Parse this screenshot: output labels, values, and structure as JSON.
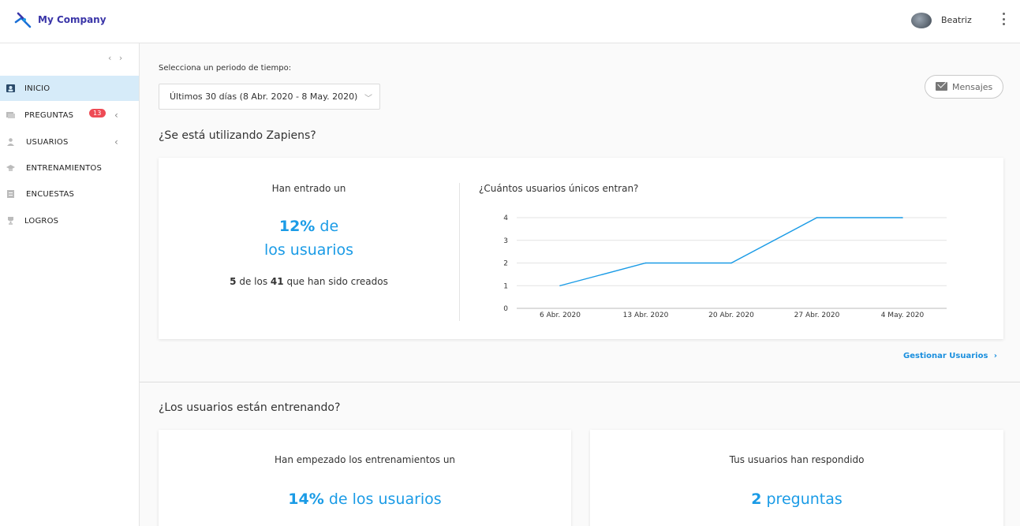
{
  "header": {
    "company": "My Company",
    "user": "Beatriz"
  },
  "sidebar": {
    "items": [
      {
        "label": "INICIO",
        "icon": "home-user-icon",
        "active": true
      },
      {
        "label": "PREGUNTAS",
        "icon": "chat-icon",
        "badge": "13"
      },
      {
        "label": "USUARIOS",
        "icon": "user-icon"
      },
      {
        "label": "ENTRENAMIENTOS",
        "icon": "graduation-cap-icon"
      },
      {
        "label": "ENCUESTAS",
        "icon": "clipboard-icon"
      },
      {
        "label": "LOGROS",
        "icon": "trophy-icon"
      }
    ]
  },
  "main": {
    "period_label": "Selecciona un periodo de tiempo:",
    "period_value": "Últimos 30 días (8 Abr. 2020 - 8 May. 2020)",
    "messages_label": "Mensajes",
    "section1": {
      "title": "¿Se está utilizando Zapiens?",
      "entered_label": "Han entrado un",
      "percent": "12%",
      "percent_suffix": "de",
      "percent_line2": "los usuarios",
      "count": "5",
      "count_mid": "de los",
      "total": "41",
      "count_suffix": "que han sido creados",
      "chart_title": "¿Cuántos usuarios únicos entran?",
      "manage_link": "Gestionar Usuarios"
    },
    "section2": {
      "title": "¿Los usuarios están entrenando?",
      "card1_label": "Han empezado los entrenamientos un",
      "card1_percent": "14%",
      "card1_suffix": "de los usuarios",
      "card2_label": "Tus usuarios han respondido",
      "card2_count": "2",
      "card2_suffix": "preguntas"
    }
  },
  "colors": {
    "accent": "#1a9be6",
    "brand": "#3a35a8",
    "badge": "#ee4b55",
    "active_bg": "#d6ebf9"
  },
  "chart_data": {
    "type": "line",
    "categories": [
      "6 Abr. 2020",
      "13 Abr. 2020",
      "20 Abr. 2020",
      "27 Abr. 2020",
      "4 May. 2020"
    ],
    "values": [
      1,
      2,
      2,
      4,
      4
    ],
    "yticks": [
      0,
      1,
      2,
      3,
      4
    ],
    "ylim": [
      0,
      4
    ],
    "title": "",
    "xlabel": "",
    "ylabel": "",
    "grid": true
  }
}
